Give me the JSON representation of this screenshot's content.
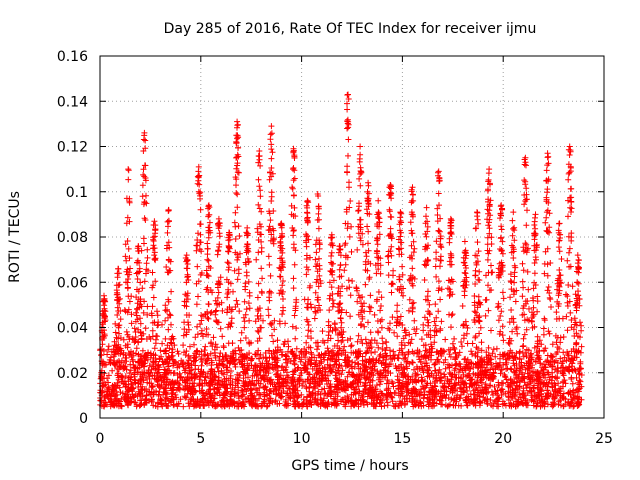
{
  "chart_data": {
    "type": "scatter",
    "title": "Day 285 of 2016, Rate Of TEC Index for receiver ijmu",
    "xlabel": "GPS time / hours",
    "ylabel": "ROTI / TECUs",
    "xlim": [
      0,
      25
    ],
    "ylim": [
      0,
      0.16
    ],
    "xticks": [
      "0",
      "5",
      "10",
      "15",
      "20",
      "25"
    ],
    "yticks": [
      "0",
      "0.02",
      "0.04",
      "0.06",
      "0.08",
      "0.1",
      "0.12",
      "0.14",
      "0.16"
    ],
    "grid": true,
    "marker": "plus",
    "color": "#ff0000",
    "series": [
      {
        "name": "ROTI",
        "baseline_range": [
          0.005,
          0.03
        ],
        "x_range_hours": [
          0,
          23.9
        ],
        "peaks": [
          {
            "x": 0.2,
            "y": 0.054
          },
          {
            "x": 0.9,
            "y": 0.066
          },
          {
            "x": 1.4,
            "y": 0.11
          },
          {
            "x": 1.9,
            "y": 0.076
          },
          {
            "x": 2.2,
            "y": 0.126
          },
          {
            "x": 2.7,
            "y": 0.087
          },
          {
            "x": 3.4,
            "y": 0.092
          },
          {
            "x": 4.3,
            "y": 0.072
          },
          {
            "x": 4.9,
            "y": 0.111
          },
          {
            "x": 5.4,
            "y": 0.094
          },
          {
            "x": 5.9,
            "y": 0.088
          },
          {
            "x": 6.4,
            "y": 0.082
          },
          {
            "x": 6.8,
            "y": 0.131
          },
          {
            "x": 7.3,
            "y": 0.084
          },
          {
            "x": 7.9,
            "y": 0.118
          },
          {
            "x": 8.5,
            "y": 0.129
          },
          {
            "x": 9.0,
            "y": 0.086
          },
          {
            "x": 9.6,
            "y": 0.119
          },
          {
            "x": 10.3,
            "y": 0.096
          },
          {
            "x": 10.8,
            "y": 0.099
          },
          {
            "x": 11.5,
            "y": 0.081
          },
          {
            "x": 11.9,
            "y": 0.076
          },
          {
            "x": 12.3,
            "y": 0.143
          },
          {
            "x": 12.9,
            "y": 0.12
          },
          {
            "x": 13.3,
            "y": 0.104
          },
          {
            "x": 13.8,
            "y": 0.096
          },
          {
            "x": 14.4,
            "y": 0.103
          },
          {
            "x": 14.9,
            "y": 0.091
          },
          {
            "x": 15.5,
            "y": 0.102
          },
          {
            "x": 16.2,
            "y": 0.093
          },
          {
            "x": 16.8,
            "y": 0.109
          },
          {
            "x": 17.4,
            "y": 0.088
          },
          {
            "x": 18.1,
            "y": 0.078
          },
          {
            "x": 18.7,
            "y": 0.091
          },
          {
            "x": 19.3,
            "y": 0.11
          },
          {
            "x": 19.9,
            "y": 0.094
          },
          {
            "x": 20.5,
            "y": 0.091
          },
          {
            "x": 21.1,
            "y": 0.115
          },
          {
            "x": 21.6,
            "y": 0.09
          },
          {
            "x": 22.2,
            "y": 0.117
          },
          {
            "x": 22.8,
            "y": 0.086
          },
          {
            "x": 23.3,
            "y": 0.12
          },
          {
            "x": 23.7,
            "y": 0.072
          }
        ]
      }
    ]
  }
}
